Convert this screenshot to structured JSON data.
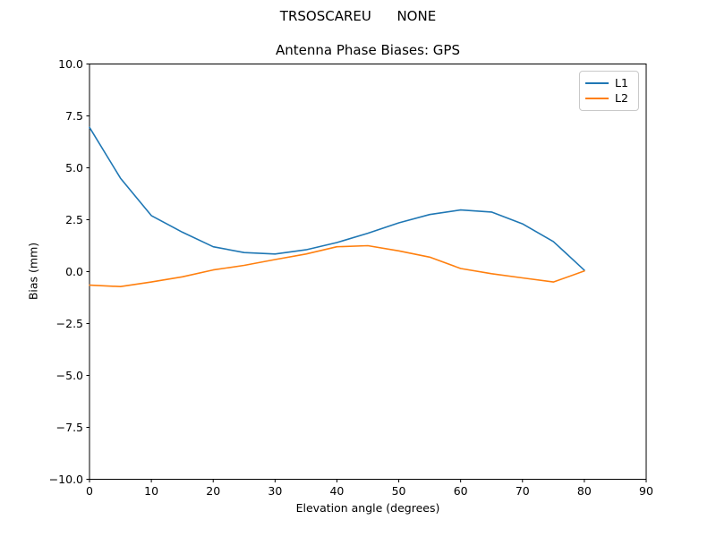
{
  "figure": {
    "suptitle": "TRSOSCAREU      NONE",
    "background": "#ffffff",
    "text_color": "#000000"
  },
  "chart_data": {
    "type": "line",
    "title": "Antenna Phase Biases: GPS",
    "xlabel": "Elevation angle (degrees)",
    "ylabel": "Bias (mm)",
    "xlim": [
      0,
      90
    ],
    "ylim": [
      -10,
      10
    ],
    "grid": false,
    "legend_position": "upper right",
    "x": [
      0,
      5,
      10,
      15,
      20,
      25,
      30,
      35,
      40,
      45,
      50,
      55,
      60,
      65,
      70,
      75,
      80
    ],
    "series": [
      {
        "name": "L1",
        "color": "#1f77b4",
        "values": [
          6.95,
          4.5,
          2.7,
          1.9,
          1.2,
          0.92,
          0.85,
          1.05,
          1.4,
          1.85,
          2.35,
          2.75,
          2.97,
          2.87,
          2.3,
          1.45,
          0.07
        ]
      },
      {
        "name": "L2",
        "color": "#ff7f0e",
        "values": [
          -0.65,
          -0.72,
          -0.5,
          -0.25,
          0.08,
          0.3,
          0.58,
          0.85,
          1.2,
          1.25,
          1.0,
          0.7,
          0.15,
          -0.1,
          -0.3,
          -0.5,
          0.03
        ]
      }
    ],
    "xticks": {
      "values": [
        0,
        10,
        20,
        30,
        40,
        50,
        60,
        70,
        80,
        90
      ],
      "labels": [
        "0",
        "10",
        "20",
        "30",
        "40",
        "50",
        "60",
        "70",
        "80",
        "90"
      ]
    },
    "yticks": {
      "values": [
        -10,
        -7.5,
        -5,
        -2.5,
        0,
        2.5,
        5,
        7.5,
        10
      ],
      "labels": [
        "−10.0",
        "−7.5",
        "−5.0",
        "−2.5",
        "0.0",
        "2.5",
        "5.0",
        "7.5",
        "10.0"
      ]
    }
  }
}
